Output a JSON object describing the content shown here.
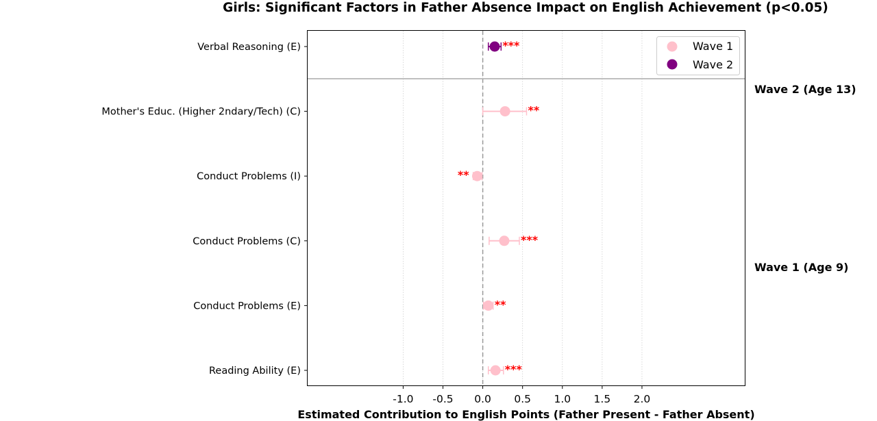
{
  "chart_data": {
    "type": "scatter",
    "title": "Girls: Significant Factors in Father Absence Impact on English Achievement (p<0.05)",
    "xlabel": "Estimated Contribution to English Points (Father Present - Father Absent)",
    "ylabel": "",
    "xlim": [
      -2.2,
      3.3
    ],
    "x_ticks": [
      -1.0,
      -0.5,
      0.0,
      0.5,
      1.0,
      1.5,
      2.0
    ],
    "x_tick_labels": [
      "-1.0",
      "-0.5",
      "0.0",
      "0.5",
      "1.0",
      "1.5",
      "2.0"
    ],
    "categories": [
      "Verbal Reasoning (E)",
      "Mother's Educ. (Higher 2ndary/Tech) (C)",
      "Conduct Problems (I)",
      "Conduct Problems (C)",
      "Conduct Problems (E)",
      "Reading Ability (E)"
    ],
    "series": [
      {
        "name": "Wave 1",
        "color": "#ffc0cb",
        "points": [
          {
            "category": "Mother's Educ. (Higher 2ndary/Tech) (C)",
            "value": 0.28,
            "ci": [
              0.0,
              0.55
            ],
            "sig": "**"
          },
          {
            "category": "Conduct Problems (I)",
            "value": -0.07,
            "ci": [
              -0.12,
              -0.01
            ],
            "sig": "**"
          },
          {
            "category": "Conduct Problems (C)",
            "value": 0.27,
            "ci": [
              0.08,
              0.46
            ],
            "sig": "***"
          },
          {
            "category": "Conduct Problems (E)",
            "value": 0.07,
            "ci": [
              0.01,
              0.13
            ],
            "sig": "**"
          },
          {
            "category": "Reading Ability (E)",
            "value": 0.16,
            "ci": [
              0.07,
              0.26
            ],
            "sig": "***"
          }
        ]
      },
      {
        "name": "Wave 2",
        "color": "#800080",
        "points": [
          {
            "category": "Verbal Reasoning (E)",
            "value": 0.15,
            "ci": [
              0.07,
              0.23
            ],
            "sig": "***"
          }
        ]
      }
    ],
    "group_labels": [
      "Wave 2 (Age 13)",
      "Wave 1 (Age 9)"
    ],
    "grid": "x dotted",
    "legend_position": "upper right",
    "zero_line": "dashed"
  }
}
